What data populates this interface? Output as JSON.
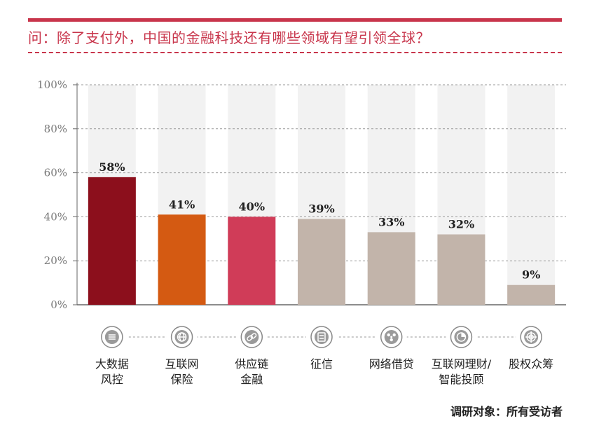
{
  "title": "问：除了支付外，中国的金融科技还有哪些领域有望引领全球？",
  "footer": "调研对象：所有受访者",
  "colors": {
    "accent": "#c8354b",
    "bar_bg": "#f2f2f2",
    "grid": "#9a9a9a"
  },
  "chart_data": {
    "type": "bar",
    "categories": [
      [
        "大数据",
        "风控"
      ],
      [
        "互联网",
        "保险"
      ],
      [
        "供应链",
        "金融"
      ],
      [
        "征信"
      ],
      [
        "网络借贷"
      ],
      [
        "互联网理财/",
        "智能投顾"
      ],
      [
        "股权众筹"
      ]
    ],
    "values": [
      58,
      41,
      40,
      39,
      33,
      32,
      9
    ],
    "value_labels": [
      "58%",
      "41%",
      "40%",
      "39%",
      "33%",
      "32%",
      "9%"
    ],
    "bar_colors": [
      "#8c0f1c",
      "#d45a12",
      "#d03c58",
      "#c2b4aa",
      "#c2b4aa",
      "#c2b4aa",
      "#c2b4aa"
    ],
    "icons": [
      "data-risk-icon",
      "globe-shield-icon",
      "chain-link-icon",
      "credit-card-icon",
      "network-icon",
      "pie-chart-icon",
      "target-icon"
    ],
    "yticks": [
      "0%",
      "20%",
      "40%",
      "60%",
      "80%",
      "100%"
    ],
    "ylim": [
      0,
      100
    ],
    "grid": true
  }
}
